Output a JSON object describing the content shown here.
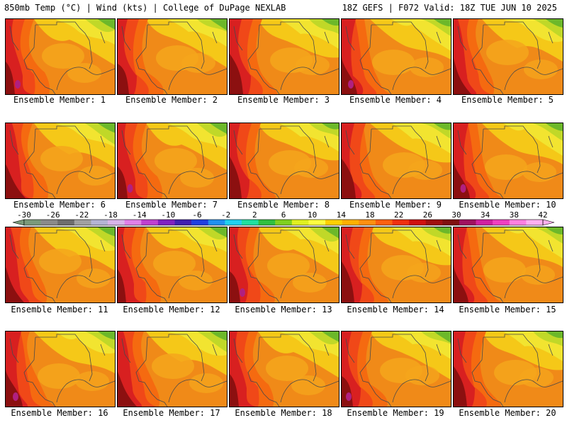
{
  "header": {
    "left": "850mb Temp (°C) | Wind (kts) | College of DuPage NEXLAB",
    "right": "18Z GEFS | F072 Valid: 18Z TUE JUN 10 2025"
  },
  "panels": [
    {
      "label": "Ensemble Member: 1",
      "variant": 0
    },
    {
      "label": "Ensemble Member: 2",
      "variant": 1
    },
    {
      "label": "Ensemble Member: 3",
      "variant": 2
    },
    {
      "label": "Ensemble Member: 4",
      "variant": 3
    },
    {
      "label": "Ensemble Member: 5",
      "variant": 4
    },
    {
      "label": "Ensemble Member: 6",
      "variant": 5
    },
    {
      "label": "Ensemble Member: 7",
      "variant": 6
    },
    {
      "label": "Ensemble Member: 8",
      "variant": 7
    },
    {
      "label": "Ensemble Member: 9",
      "variant": 8
    },
    {
      "label": "Ensemble Member: 10",
      "variant": 9
    },
    {
      "label": "Ensemble Member: 11",
      "variant": 10
    },
    {
      "label": "Ensemble Member: 12",
      "variant": 11
    },
    {
      "label": "Ensemble Member: 13",
      "variant": 12
    },
    {
      "label": "Ensemble Member: 14",
      "variant": 13
    },
    {
      "label": "Ensemble Member: 15",
      "variant": 14
    },
    {
      "label": "Ensemble Member: 16",
      "variant": 15
    },
    {
      "label": "Ensemble Member: 17",
      "variant": 16
    },
    {
      "label": "Ensemble Member: 18",
      "variant": 17
    },
    {
      "label": "Ensemble Member: 19",
      "variant": 18
    },
    {
      "label": "Ensemble Member: 20",
      "variant": 19
    }
  ],
  "colorbar": {
    "tick_labels": [
      "-30",
      "-26",
      "-22",
      "-18",
      "-14",
      "-10",
      "-6",
      "-2",
      "2",
      "6",
      "10",
      "14",
      "18",
      "22",
      "26",
      "30",
      "34",
      "38",
      "42"
    ],
    "colors": [
      "#7a9a7a",
      "#8a8a8a",
      "#6e6e6e",
      "#a0a0a0",
      "#b4b4d4",
      "#d8b4e8",
      "#e080e8",
      "#c040d0",
      "#8020c0",
      "#4020b0",
      "#2040e0",
      "#2090f0",
      "#20d0f0",
      "#20e0a0",
      "#30c040",
      "#80d020",
      "#e0f020",
      "#ffff40",
      "#ffd000",
      "#ffb000",
      "#ff9010",
      "#ff6010",
      "#f03010",
      "#d01010",
      "#a01010",
      "#801010",
      "#a01060",
      "#d020a0",
      "#f040c0",
      "#ff80e0",
      "#ffb0f0"
    ]
  },
  "palette": {
    "dark_red": "#8c1010",
    "red": "#d82020",
    "red_orange": "#f04818",
    "orange_red": "#f56a10",
    "orange": "#f08a18",
    "light_orange": "#f5a61c",
    "gold": "#f5c818",
    "yellow": "#f2e430",
    "yellow_green": "#c0d828",
    "green": "#6cb82a",
    "magenta": "#b02080",
    "contour": "#4a4a4a"
  }
}
